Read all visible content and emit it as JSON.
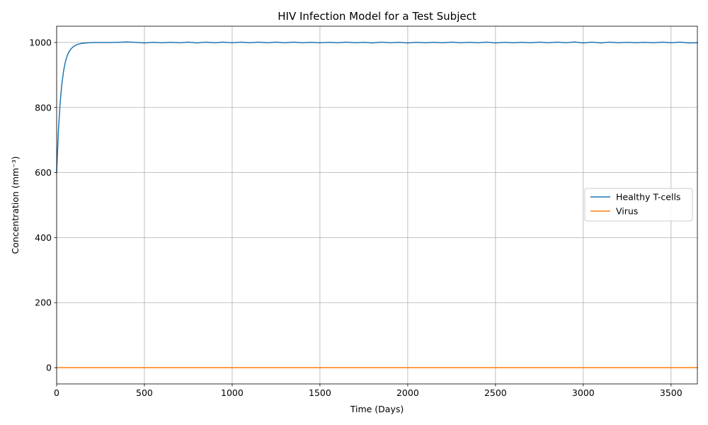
{
  "chart_data": {
    "type": "line",
    "title": "HIV Infection Model for a Test Subject",
    "xlabel": "Time (Days)",
    "ylabel": "Concentration (mm⁻³)",
    "xlim": [
      0,
      3650
    ],
    "ylim": [
      -50,
      1050
    ],
    "xticks": [
      0,
      500,
      1000,
      1500,
      2000,
      2500,
      3000,
      3500
    ],
    "yticks": [
      0,
      200,
      400,
      600,
      800,
      1000
    ],
    "grid": true,
    "legend_position": "center-right",
    "series": [
      {
        "name": "Healthy T-cells",
        "color": "#1f77b4",
        "x": [
          0,
          10,
          20,
          30,
          40,
          50,
          60,
          70,
          80,
          90,
          100,
          110,
          120,
          140,
          160,
          180,
          200,
          250,
          300,
          350,
          400,
          450,
          500,
          550,
          600,
          650,
          700,
          750,
          800,
          850,
          900,
          950,
          1000,
          1050,
          1100,
          1150,
          1200,
          1250,
          1300,
          1350,
          1400,
          1450,
          1500,
          1550,
          1600,
          1650,
          1700,
          1750,
          1800,
          1850,
          1900,
          1950,
          2000,
          2050,
          2100,
          2150,
          2200,
          2250,
          2300,
          2350,
          2400,
          2450,
          2500,
          2550,
          2600,
          2650,
          2700,
          2750,
          2800,
          2850,
          2900,
          2950,
          3000,
          3050,
          3100,
          3150,
          3200,
          3250,
          3300,
          3350,
          3400,
          3450,
          3500,
          3550,
          3600,
          3650
        ],
        "y": [
          600,
          728,
          815,
          874,
          914,
          941,
          959,
          971,
          979,
          985,
          989,
          992,
          994,
          997,
          998,
          999,
          999.5,
          1000,
          1000,
          1000.5,
          1001.5,
          1000.5,
          998.5,
          1000.5,
          999,
          1000.5,
          999,
          1001,
          998.5,
          1001,
          999,
          1001,
          999,
          1001,
          999,
          1001,
          999,
          1001,
          999,
          1001,
          999,
          1000.5,
          999,
          1000.5,
          999,
          1001,
          999,
          1000.5,
          998.5,
          1001,
          999,
          1000.5,
          998.5,
          1000.5,
          999,
          1000.5,
          999,
          1001,
          999,
          1000.5,
          999,
          1001,
          998.5,
          1000.5,
          999,
          1000.5,
          999,
          1001,
          999,
          1001,
          999,
          1001.5,
          998.5,
          1001,
          998.5,
          1001,
          999,
          1000.5,
          999,
          1000.5,
          999,
          1001,
          999,
          1001,
          998.5,
          999
        ]
      },
      {
        "name": "Virus",
        "color": "#ff7f0e",
        "x": [
          0,
          3650
        ],
        "y": [
          0,
          0
        ]
      }
    ]
  }
}
